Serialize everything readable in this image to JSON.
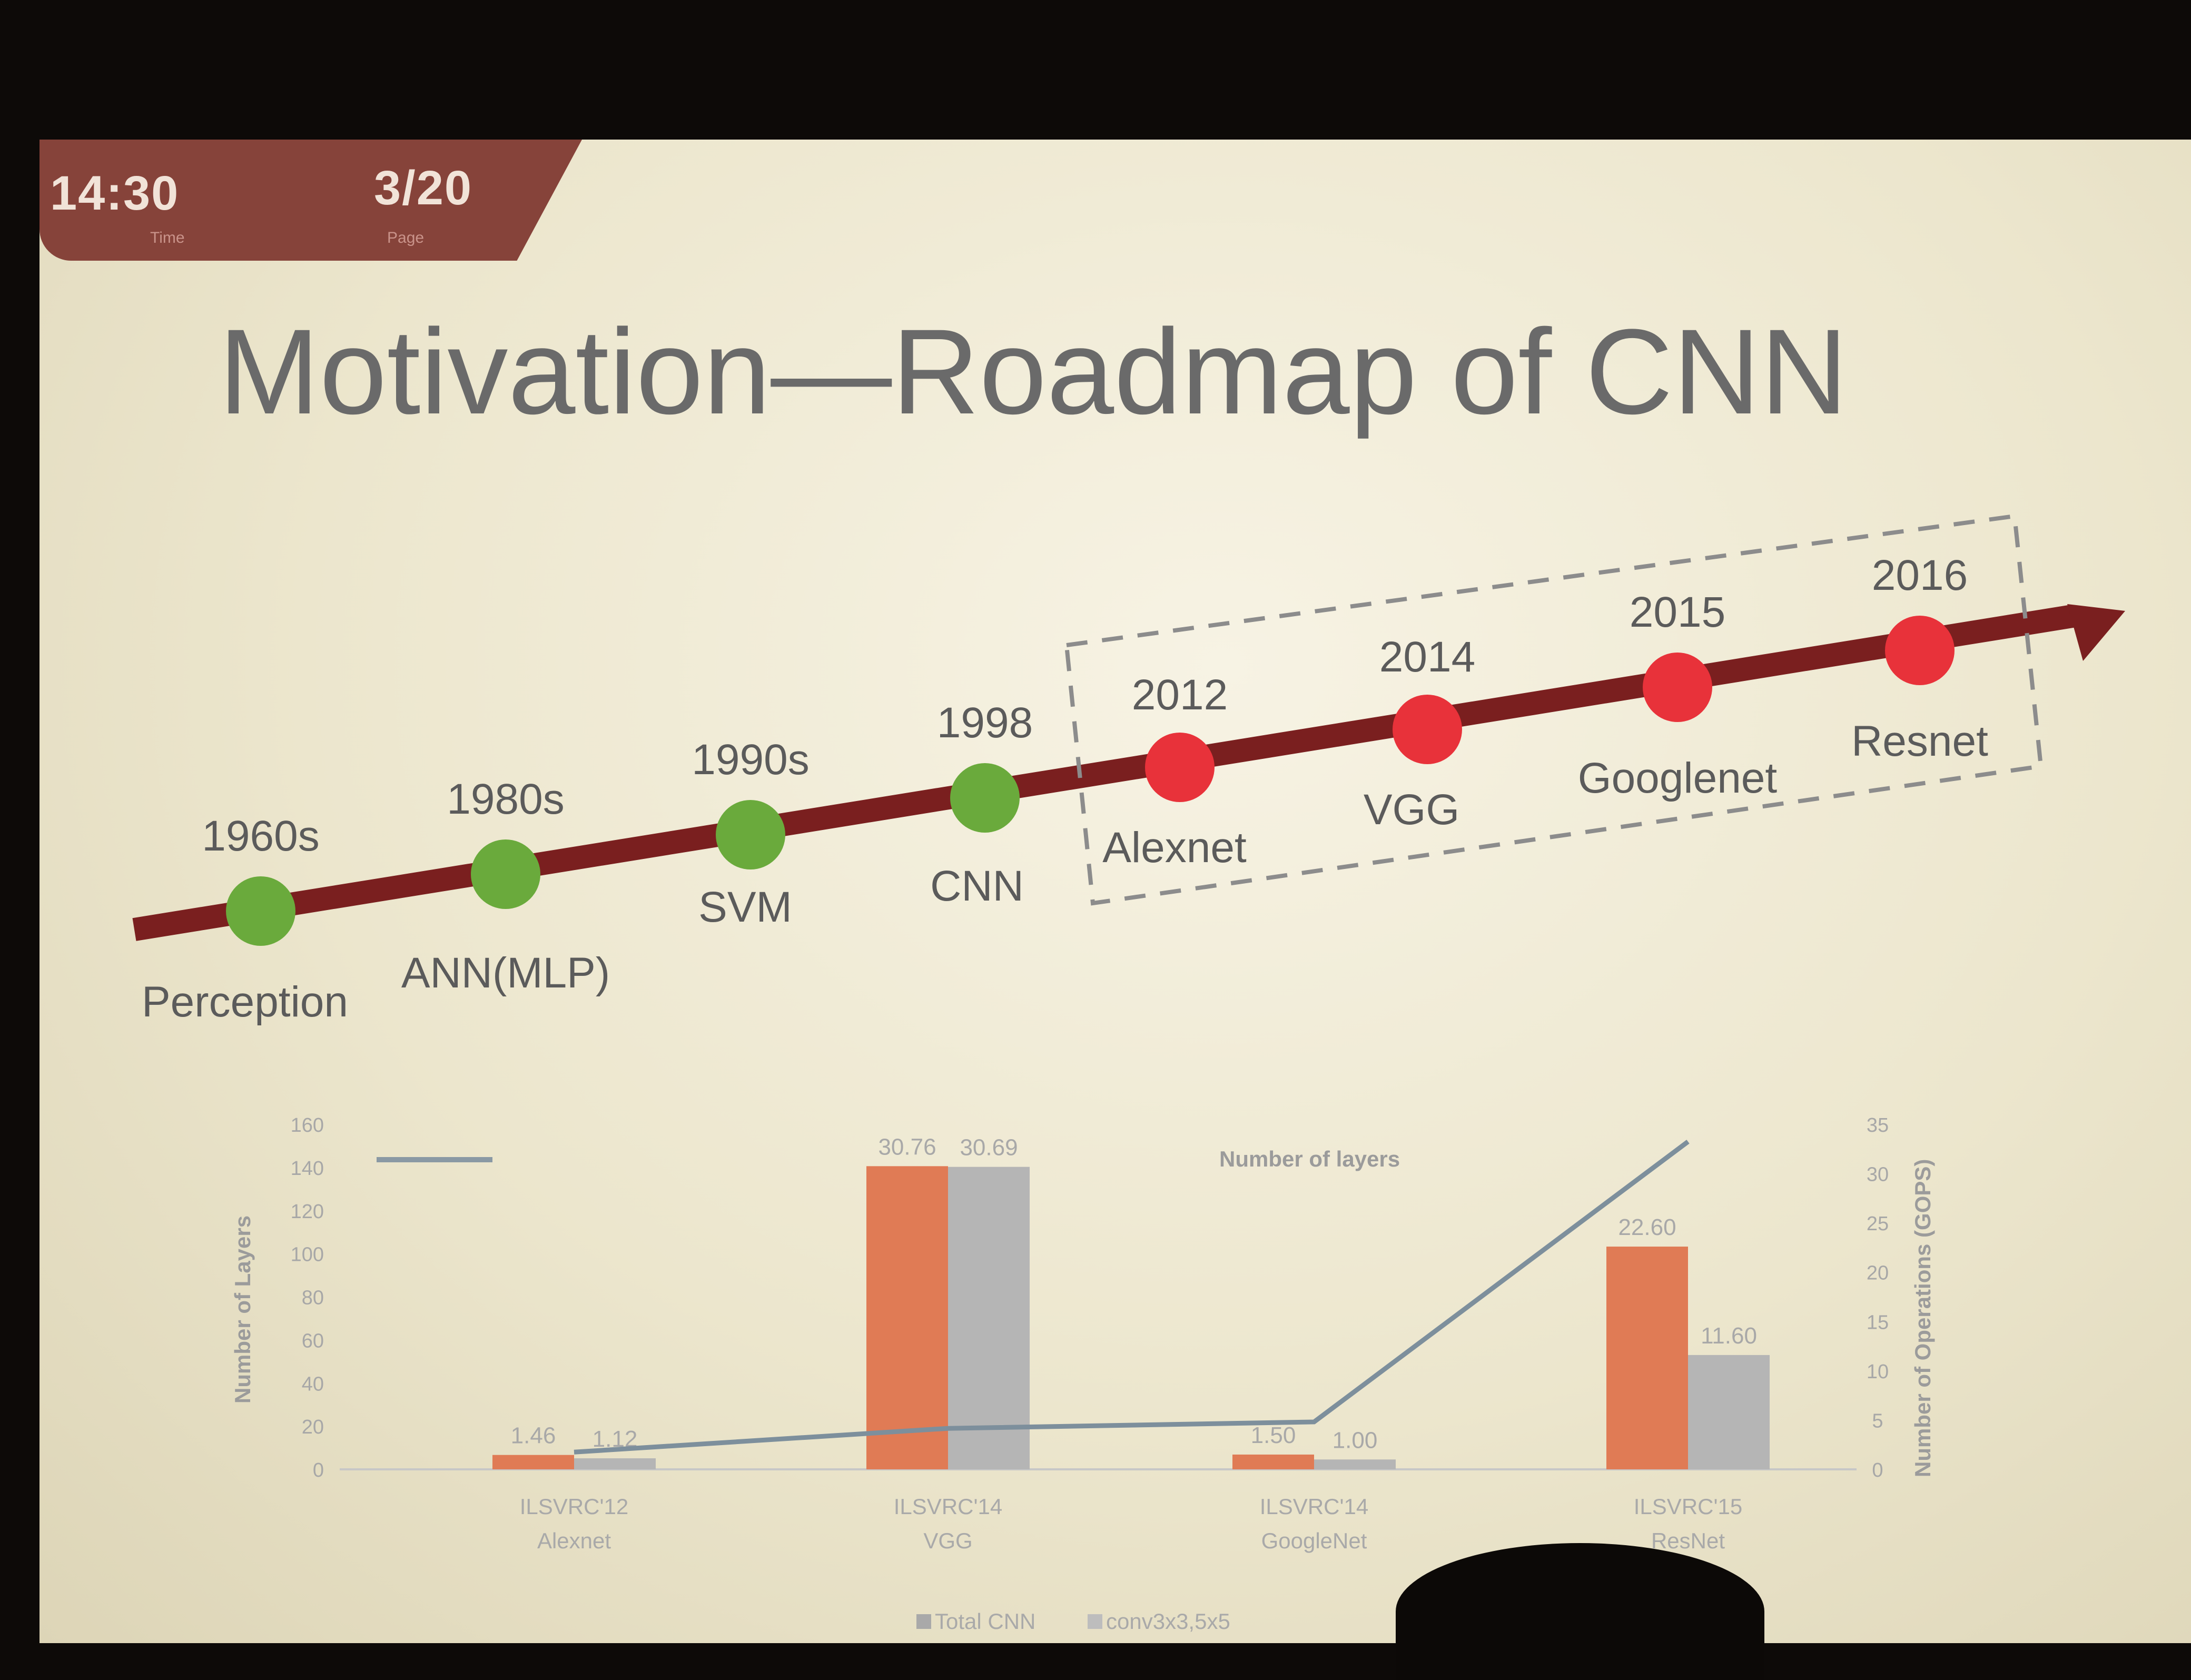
{
  "header": {
    "time": "14:30",
    "time_caption": "Time",
    "page": "3/20",
    "page_caption": "Page"
  },
  "slide": {
    "title": "Motivation—Roadmap of CNN"
  },
  "timeline": {
    "milestones": [
      {
        "year": "1960s",
        "label": "Perception",
        "color": "#6aaa3c"
      },
      {
        "year": "1980s",
        "label": "ANN(MLP)",
        "color": "#6aaa3c"
      },
      {
        "year": "1990s",
        "label": "SVM",
        "color": "#6aaa3c"
      },
      {
        "year": "1998",
        "label": "CNN",
        "color": "#6aaa3c"
      },
      {
        "year": "2012",
        "label": "Alexnet",
        "color": "#e8323a"
      },
      {
        "year": "2014",
        "label": "VGG",
        "color": "#e8323a"
      },
      {
        "year": "2015",
        "label": "Googlenet",
        "color": "#e8323a"
      },
      {
        "year": "2016",
        "label": "Resnet",
        "color": "#e8323a"
      }
    ]
  },
  "chart_data": {
    "type": "bar",
    "categories": [
      "ILSVRC'12\nAlexnet",
      "ILSVRC'14\nVGG",
      "ILSVRC'14\nGoogleNet",
      "ILSVRC'15\nResNet"
    ],
    "series": [
      {
        "name": "Total CNN",
        "values": [
          1.46,
          30.76,
          1.5,
          22.6
        ],
        "color": "#e07b55"
      },
      {
        "name": "conv3x3,5x5",
        "values": [
          1.12,
          30.69,
          1.0,
          11.6
        ],
        "color": "#b5b5b5"
      }
    ],
    "data_labels": [
      [
        "1.46",
        "1.12"
      ],
      [
        "30.76",
        "30.69"
      ],
      [
        "1.50",
        "1.00"
      ],
      [
        "22.60",
        "11.60"
      ]
    ],
    "line_series": {
      "name": "Number of layers",
      "values": [
        8,
        19,
        22,
        152
      ]
    },
    "line_legend": "Number of layers",
    "ylabel_left": "Number of Layers",
    "ylabel_right": "Number of Operations (GOPS)",
    "ylim_left": [
      0,
      160
    ],
    "ylim_right": [
      0,
      35
    ],
    "yticks_left": [
      "0",
      "20",
      "40",
      "60",
      "80",
      "100",
      "120",
      "140",
      "160"
    ],
    "yticks_right": [
      "0",
      "5",
      "10",
      "15",
      "20",
      "25",
      "30",
      "35"
    ]
  }
}
